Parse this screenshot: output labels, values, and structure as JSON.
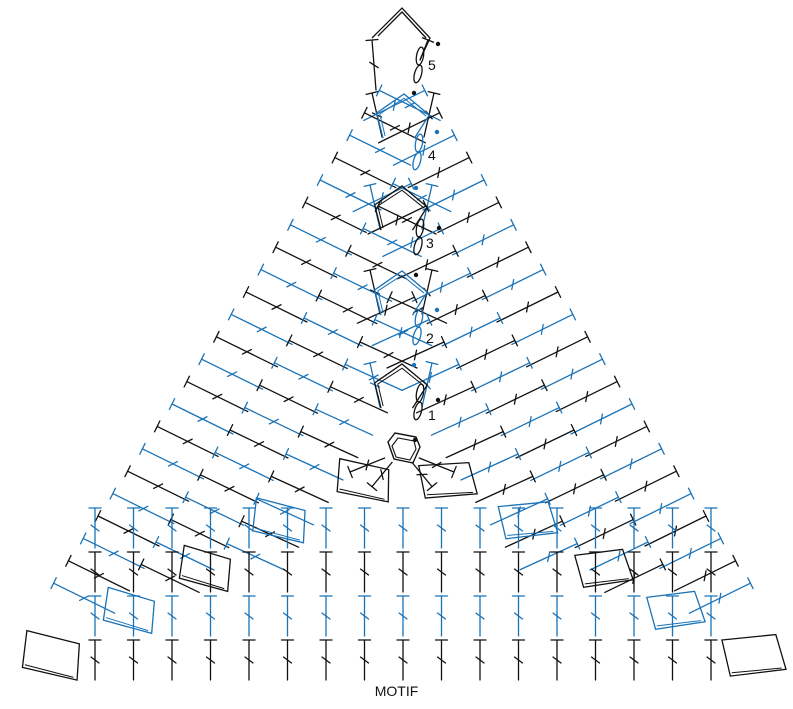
{
  "caption": "MOTIF",
  "colors": {
    "odd_rows": "#111111",
    "even_rows": "#1a73b8",
    "background": "#ffffff"
  },
  "row_labels": [
    "1",
    "2",
    "3",
    "4",
    "5"
  ],
  "symbols": [
    "chain",
    "slip-stitch",
    "double-crochet",
    "triple-crochet"
  ],
  "rounds": [
    {
      "label": "1",
      "color": "black"
    },
    {
      "label": "2",
      "color": "blue"
    },
    {
      "label": "3",
      "color": "black"
    },
    {
      "label": "4",
      "color": "blue"
    },
    {
      "label": "5",
      "color": "black"
    }
  ]
}
